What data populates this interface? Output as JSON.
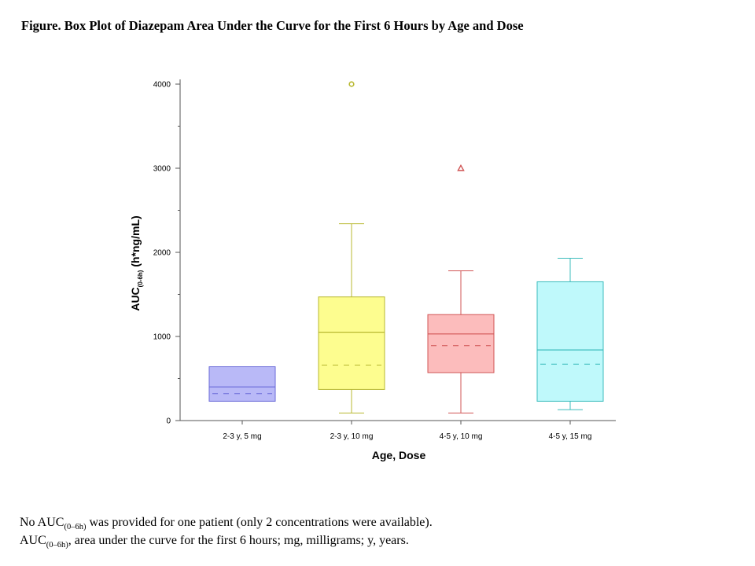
{
  "figure_title": "Figure. Box Plot of Diazepam Area Under the Curve for the First 6 Hours by Age and Dose",
  "chart_data": {
    "type": "box",
    "xlabel": "Age, Dose",
    "ylabel_main": "AUC",
    "ylabel_sub": "(0-6h)",
    "ylabel_unit": " (h*ng/mL)",
    "ylim": [
      0,
      4000
    ],
    "yticks": [
      "0",
      "1000",
      "2000",
      "3000",
      "4000"
    ],
    "grid": false,
    "categories": [
      "2-3 y, 5 mg",
      "2-3 y, 10 mg",
      "4-5 y, 10 mg",
      "4-5 y, 15 mg"
    ],
    "series": [
      {
        "whisker_low": 230,
        "q1": 230,
        "median": 400,
        "mean": 320,
        "q3": 640,
        "whisker_high": 640,
        "outlier": null,
        "outlier_shape": null,
        "fill": "#b9b9f7",
        "stroke": "#6a6ad8"
      },
      {
        "whisker_low": 90,
        "q1": 370,
        "median": 1050,
        "mean": 660,
        "q3": 1470,
        "whisker_high": 2340,
        "outlier": 4000,
        "outlier_shape": "circle",
        "fill": "#fdfd8f",
        "stroke": "#b8b830"
      },
      {
        "whisker_low": 90,
        "q1": 570,
        "median": 1030,
        "mean": 890,
        "q3": 1260,
        "whisker_high": 1780,
        "outlier": 3000,
        "outlier_shape": "triangle",
        "fill": "#fcbcbc",
        "stroke": "#d05555"
      },
      {
        "whisker_low": 130,
        "q1": 230,
        "median": 840,
        "mean": 670,
        "q3": 1650,
        "whisker_high": 1930,
        "outlier": null,
        "outlier_shape": null,
        "fill": "#bff9fb",
        "stroke": "#3cbcbc"
      }
    ]
  },
  "footnotes": {
    "line1_pre": "No AUC",
    "line1_sub": "(0–6h)",
    "line1_post": " was provided for one patient (only 2 concentrations were available).",
    "line2_pre": "AUC",
    "line2_sub": "(0–6h)",
    "line2_post": ", area under the curve for the first 6 hours; mg, milligrams;  y, years."
  }
}
